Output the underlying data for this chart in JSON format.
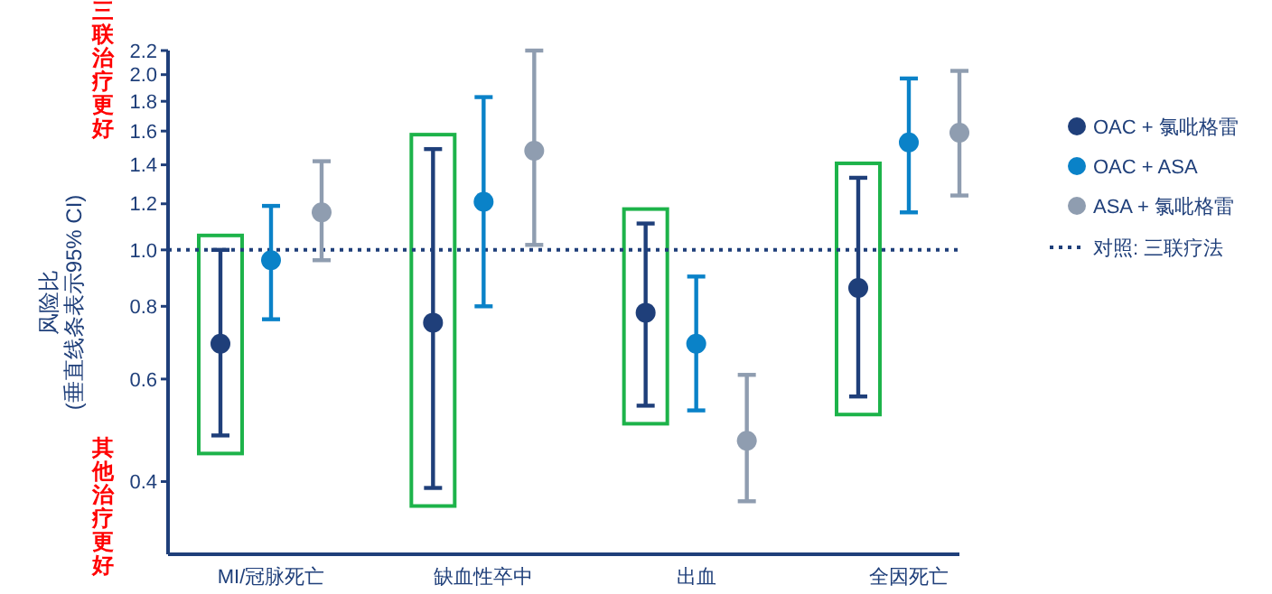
{
  "chart_data": {
    "type": "scatter",
    "ylabel": "风险比\n(垂直线条表示95% CI)",
    "categories": [
      "MI/冠脉死亡",
      "缺血性卒中",
      "出血",
      "全因死亡"
    ],
    "series": [
      {
        "name": "OAC + 氯吡格雷",
        "color": "#1f3f7a",
        "values": [
          0.69,
          0.75,
          0.78,
          0.86
        ],
        "errors": [
          [
            0.48,
            1.0
          ],
          [
            0.39,
            1.49
          ],
          [
            0.54,
            1.11
          ],
          [
            0.56,
            1.33
          ]
        ]
      },
      {
        "name": "OAC + ASA",
        "color": "#0a82c8",
        "values": [
          0.96,
          1.21,
          0.69,
          1.53
        ],
        "errors": [
          [
            0.76,
            1.19
          ],
          [
            0.8,
            1.83
          ],
          [
            0.53,
            0.9
          ],
          [
            1.16,
            1.97
          ]
        ]
      },
      {
        "name": "ASA + 氯吡格雷",
        "color": "#8f9db0",
        "values": [
          1.16,
          1.48,
          0.47,
          1.59
        ],
        "errors": [
          [
            0.96,
            1.42
          ],
          [
            1.02,
            2.2
          ],
          [
            0.37,
            0.61
          ],
          [
            1.24,
            2.03
          ]
        ]
      }
    ],
    "log": true,
    "ylim": [
      0.3,
      2.2
    ],
    "yticks": [
      0.4,
      0.6,
      0.8,
      {
        "value": 1,
        "label": "1.0"
      },
      1.2,
      1.4,
      1.6,
      1.8,
      {
        "value": 2,
        "label": "2.0"
      },
      2.2
    ],
    "ref_lines": [
      {
        "axis": "y",
        "value": 1.0,
        "label": "对照: 三联疗法",
        "color": "#1f3f7a",
        "line_style": "dotted"
      }
    ],
    "annotations": [
      "三联治疗更好",
      "其他治疗更好"
    ],
    "marker": "circle",
    "legend": "right",
    "grid": false
  }
}
